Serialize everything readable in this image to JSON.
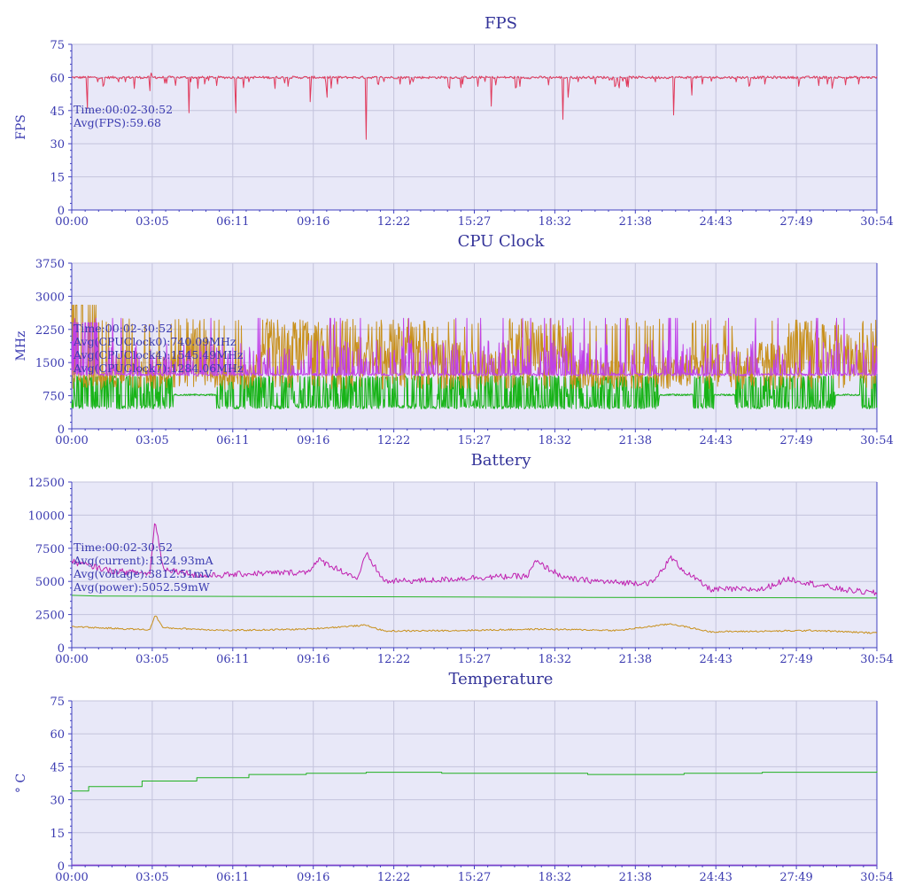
{
  "colors": {
    "plot_bg": "#e8e8f8",
    "grid": "#c4c4dc",
    "axis": "#4040c0",
    "text": "#3a3ab0",
    "title": "#333399",
    "fps": "#e03a5c",
    "cpu0": "#18b418",
    "cpu4": "#c8901c",
    "cpu7": "#c040e8",
    "battery_current": "#c8901c",
    "battery_voltage": "#28b428",
    "battery_power": "#c020b0",
    "temperature": "#20b020",
    "temperature_base": "#9040d0"
  },
  "chart_data": [
    {
      "type": "line",
      "title": "FPS",
      "ylabel": "FPS",
      "ylim": [
        0,
        75
      ],
      "yticks": [
        "0",
        "15",
        "30",
        "45",
        "60",
        "75"
      ],
      "xticks": [
        "00:00",
        "03:05",
        "06:11",
        "09:16",
        "12:22",
        "15:27",
        "18:32",
        "21:38",
        "24:43",
        "27:49",
        "30:54"
      ],
      "grid": true,
      "annotations": [
        "Time:00:02-30:52",
        "Avg(FPS):59.68"
      ],
      "series": [
        {
          "key": "fps",
          "kind": "spiky",
          "baseline": 60,
          "spikes": [
            [
              0.6,
              46
            ],
            [
              3.0,
              54
            ],
            [
              3.2,
              60.5
            ],
            [
              3.05,
              62
            ],
            [
              4.5,
              44
            ],
            [
              6.3,
              44
            ],
            [
              7.8,
              55
            ],
            [
              9.15,
              49
            ],
            [
              9.8,
              51
            ],
            [
              11.3,
              32
            ],
            [
              12.6,
              57
            ],
            [
              14.5,
              55
            ],
            [
              16.1,
              47
            ],
            [
              18.85,
              41
            ],
            [
              19.05,
              51
            ],
            [
              23.1,
              43
            ],
            [
              23.8,
              52
            ],
            [
              29.0,
              57
            ]
          ],
          "noise_spikes": [
            [
              1.2,
              56
            ],
            [
              1.8,
              58
            ],
            [
              2.4,
              55
            ],
            [
              5.1,
              57
            ],
            [
              6.8,
              58
            ],
            [
              8.3,
              56
            ],
            [
              10.2,
              57
            ],
            [
              13.1,
              58
            ],
            [
              15.0,
              57
            ],
            [
              17.2,
              56
            ],
            [
              20.1,
              57
            ],
            [
              21.3,
              56
            ],
            [
              22.4,
              58
            ],
            [
              24.2,
              57
            ],
            [
              25.5,
              58
            ],
            [
              26.6,
              57
            ],
            [
              27.9,
              56
            ],
            [
              30.2,
              57
            ]
          ]
        }
      ]
    },
    {
      "type": "line",
      "title": "CPU Clock",
      "ylabel": "MHz",
      "ylim": [
        0,
        3750
      ],
      "yticks": [
        "0",
        "750",
        "1500",
        "2250",
        "3000",
        "3750"
      ],
      "xticks": [
        "00:00",
        "03:05",
        "06:11",
        "09:16",
        "12:22",
        "15:27",
        "18:32",
        "21:38",
        "24:43",
        "27:49",
        "30:54"
      ],
      "grid": true,
      "annotations": [
        "Time:00:02-30:52",
        "Avg(CPUClock0):740.09MHz",
        "Avg(CPUClock4):1545.49MHz",
        "Avg(CPUClock7):1284.06MHz"
      ],
      "series": [
        {
          "key": "cpu0",
          "kind": "band",
          "low": 450,
          "high": 1200,
          "mid": 740
        },
        {
          "key": "cpu4",
          "kind": "band",
          "low": 900,
          "high": 2500,
          "mid": 1545
        },
        {
          "key": "cpu7",
          "kind": "band",
          "low": 1200,
          "high": 2000,
          "mid": 1284
        }
      ]
    },
    {
      "type": "line",
      "title": "Battery",
      "ylabel": "",
      "ylim": [
        0,
        12500
      ],
      "yticks": [
        "0",
        "2500",
        "5000",
        "7500",
        "10000",
        "12500"
      ],
      "xticks": [
        "00:00",
        "03:05",
        "06:11",
        "09:16",
        "12:22",
        "15:27",
        "18:32",
        "21:38",
        "24:43",
        "27:49",
        "30:54"
      ],
      "grid": true,
      "annotations": [
        "Time:00:02-30:52",
        "Avg(current):1324.93mA",
        "Avg(voltage):3812.51mV",
        "Avg(power):5052.59mW"
      ],
      "series": [
        {
          "key": "battery_power",
          "kind": "wobble",
          "points": [
            [
              0,
              6500
            ],
            [
              1.5,
              5800
            ],
            [
              3,
              5600
            ],
            [
              3.2,
              9700
            ],
            [
              3.5,
              6000
            ],
            [
              5,
              5400
            ],
            [
              7,
              5600
            ],
            [
              9,
              5700
            ],
            [
              9.5,
              6600
            ],
            [
              11,
              5200
            ],
            [
              11.3,
              7100
            ],
            [
              12,
              5000
            ],
            [
              14,
              5100
            ],
            [
              15.5,
              5300
            ],
            [
              17.5,
              5400
            ],
            [
              17.8,
              6500
            ],
            [
              19,
              5200
            ],
            [
              21,
              4900
            ],
            [
              22.3,
              4900
            ],
            [
              23,
              6800
            ],
            [
              23.5,
              5800
            ],
            [
              24.5,
              4400
            ],
            [
              26.5,
              4400
            ],
            [
              27.5,
              5200
            ],
            [
              28.5,
              4800
            ],
            [
              29.5,
              4400
            ],
            [
              30.9,
              4100
            ]
          ]
        },
        {
          "key": "battery_voltage",
          "kind": "smooth",
          "points": [
            [
              0,
              3950
            ],
            [
              1,
              3900
            ],
            [
              10,
              3850
            ],
            [
              20,
              3800
            ],
            [
              30.9,
              3750
            ]
          ]
        },
        {
          "key": "battery_current",
          "kind": "wobble",
          "points": [
            [
              0,
              1600
            ],
            [
              1,
              1500
            ],
            [
              3,
              1350
            ],
            [
              3.2,
              2500
            ],
            [
              3.5,
              1500
            ],
            [
              6,
              1300
            ],
            [
              9,
              1400
            ],
            [
              11.3,
              1700
            ],
            [
              12,
              1250
            ],
            [
              15,
              1300
            ],
            [
              18,
              1400
            ],
            [
              21,
              1300
            ],
            [
              23,
              1800
            ],
            [
              24.5,
              1200
            ],
            [
              27,
              1250
            ],
            [
              28.5,
              1300
            ],
            [
              30.9,
              1100
            ]
          ]
        }
      ]
    },
    {
      "type": "line",
      "title": "Temperature",
      "ylabel": "° C",
      "ylim": [
        0,
        75
      ],
      "yticks": [
        "0",
        "15",
        "30",
        "45",
        "60",
        "75"
      ],
      "xticks": [
        "00:00",
        "03:05",
        "06:11",
        "09:16",
        "12:22",
        "15:27",
        "18:32",
        "21:38",
        "24:43",
        "27:49",
        "30:54"
      ],
      "grid": true,
      "annotations": [],
      "series": [
        {
          "key": "temperature",
          "kind": "step",
          "points": [
            [
              0,
              34
            ],
            [
              0.65,
              36
            ],
            [
              2.7,
              38.5
            ],
            [
              4.8,
              40
            ],
            [
              6.8,
              41.5
            ],
            [
              9.0,
              42
            ],
            [
              11.3,
              42.5
            ],
            [
              14.2,
              42
            ],
            [
              19.8,
              41.5
            ],
            [
              23.5,
              42
            ],
            [
              26.5,
              42.5
            ],
            [
              30.9,
              43
            ]
          ]
        },
        {
          "key": "temperature_base",
          "kind": "smooth",
          "points": [
            [
              0,
              0.3
            ],
            [
              30.9,
              0.3
            ]
          ]
        }
      ]
    }
  ]
}
